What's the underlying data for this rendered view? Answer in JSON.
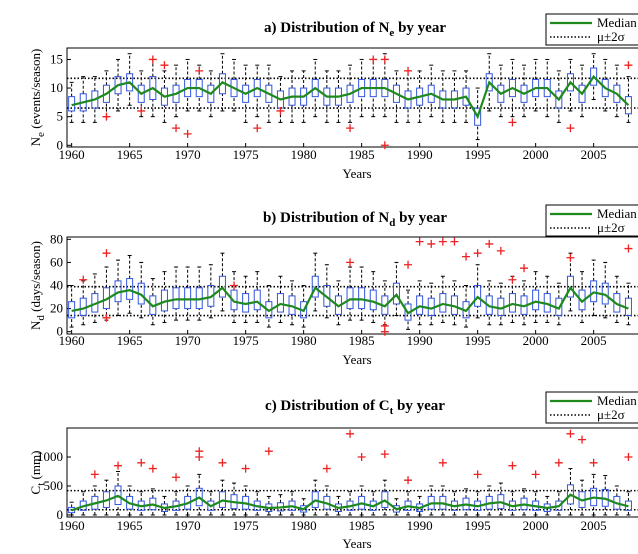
{
  "chart_data": [
    {
      "type": "box",
      "title": {
        "main": "a) Distribution of N",
        "sub": "e",
        "tail": " by year"
      },
      "ylabel": {
        "main": "N",
        "sub": "e",
        "tail": " (events/season)"
      },
      "xlabel": "Years",
      "legend": {
        "median": "Median",
        "band": "μ±2σ"
      },
      "median_color": "#1e8a1e",
      "box_color": "#3355dd",
      "outlier_color": "#ee2222",
      "xlim": [
        1959.6,
        2009.3
      ],
      "xticks": [
        1960,
        1965,
        1970,
        1975,
        1980,
        1985,
        1990,
        1995,
        2000,
        2005
      ],
      "ylim": [
        -0.3,
        17
      ],
      "yticks": [
        0,
        5,
        10,
        15
      ],
      "mu_plus": 11.7,
      "mu_minus": 6.5,
      "years": [
        1960,
        1961,
        1962,
        1963,
        1964,
        1965,
        1966,
        1967,
        1968,
        1969,
        1970,
        1971,
        1972,
        1973,
        1974,
        1975,
        1976,
        1977,
        1978,
        1979,
        1980,
        1981,
        1982,
        1983,
        1984,
        1985,
        1986,
        1987,
        1988,
        1989,
        1990,
        1991,
        1992,
        1993,
        1994,
        1995,
        1996,
        1997,
        1998,
        1999,
        2000,
        2001,
        2002,
        2003,
        2004,
        2005,
        2006,
        2007,
        2008
      ],
      "median": [
        7,
        7.5,
        8,
        9,
        10.5,
        11,
        9,
        10,
        8.5,
        9,
        10,
        10,
        9,
        11,
        10,
        9,
        10,
        9,
        8,
        8.5,
        8.5,
        10,
        8.5,
        8.5,
        9,
        10,
        10,
        10,
        9,
        8,
        8.5,
        9,
        8,
        8,
        8.5,
        5,
        11,
        9,
        10,
        9,
        10,
        10,
        8,
        11,
        9,
        12,
        10,
        9,
        7
      ],
      "q1": [
        6,
        6,
        6.5,
        7.5,
        9,
        9.5,
        7.5,
        8,
        7,
        7.5,
        8.5,
        8.5,
        7.5,
        9,
        8.5,
        7.5,
        8.5,
        7.5,
        6.5,
        7,
        7,
        8.5,
        7,
        7,
        7.5,
        8.5,
        8.5,
        8.5,
        7.5,
        6.5,
        7,
        7.5,
        6.5,
        6.5,
        7,
        3.5,
        9.5,
        7.5,
        8.5,
        7.5,
        8.5,
        8.5,
        6.5,
        9.5,
        7.5,
        10.5,
        8.5,
        7.5,
        5.5
      ],
      "q3": [
        8.5,
        9,
        9.5,
        10.5,
        12,
        12.5,
        10.5,
        12,
        10,
        10.5,
        11.5,
        11.5,
        10.5,
        12.5,
        11.5,
        10.5,
        11.5,
        10.5,
        9.5,
        10,
        10,
        11.5,
        10,
        10,
        10.5,
        11.5,
        11.5,
        11.5,
        10.5,
        9.5,
        10,
        10.5,
        9.5,
        9.5,
        10,
        6.5,
        12.5,
        10.5,
        11.5,
        10.5,
        11.5,
        11.5,
        9.5,
        12.5,
        10.5,
        13.5,
        11.5,
        10.5,
        8.5
      ],
      "whisker_low": [
        4,
        4,
        4,
        5,
        6,
        7,
        5,
        5,
        4,
        5,
        6,
        6,
        5,
        6,
        6,
        4,
        5,
        4,
        4,
        4,
        4,
        5,
        4,
        4,
        4,
        5,
        5,
        5,
        4,
        4,
        4,
        5,
        4,
        4,
        4,
        1,
        6,
        5,
        5,
        5,
        6,
        5,
        4,
        6,
        5,
        8,
        6,
        5,
        4
      ],
      "whisker_high": [
        11,
        12,
        12,
        13,
        15,
        16,
        13,
        15,
        13,
        14,
        15,
        14,
        13,
        16,
        15,
        14,
        14,
        14,
        12,
        13,
        13,
        15,
        13,
        13,
        14,
        15,
        15,
        16,
        13,
        13,
        13,
        14,
        13,
        13,
        13,
        10,
        16,
        14,
        15,
        14,
        15,
        15,
        13,
        15,
        14,
        16,
        15,
        14,
        12
      ],
      "outliers": {
        "x": [
          1963,
          1967,
          1968,
          1969,
          1970,
          1971,
          1976,
          1984,
          1986,
          1987,
          1987,
          1989,
          2003,
          2008,
          1966,
          1978,
          1998
        ],
        "values": [
          5,
          15,
          14,
          3,
          2,
          13,
          3,
          3,
          15,
          15,
          0,
          13,
          3,
          14,
          6,
          6,
          4
        ]
      }
    },
    {
      "type": "box",
      "title": {
        "main": "b) Distribution of N",
        "sub": "d",
        "tail": " by year"
      },
      "ylabel": {
        "main": "N",
        "sub": "d",
        "tail": " (days/season)"
      },
      "xlabel": "Years",
      "legend": {
        "median": "Median",
        "band": "μ±2σ"
      },
      "median_color": "#1e8a1e",
      "box_color": "#3355dd",
      "outlier_color": "#ee2222",
      "xlim": [
        1959.6,
        2009.3
      ],
      "xticks": [
        1960,
        1965,
        1970,
        1975,
        1980,
        1985,
        1990,
        1995,
        2000,
        2005
      ],
      "ylim": [
        -2,
        82
      ],
      "yticks": [
        0,
        20,
        40,
        60,
        80
      ],
      "mu_plus": 39,
      "mu_minus": 14,
      "years": [
        1960,
        1961,
        1962,
        1963,
        1964,
        1965,
        1966,
        1967,
        1968,
        1969,
        1970,
        1971,
        1972,
        1973,
        1974,
        1975,
        1976,
        1977,
        1978,
        1979,
        1980,
        1981,
        1982,
        1983,
        1984,
        1985,
        1986,
        1987,
        1988,
        1989,
        1990,
        1991,
        1992,
        1993,
        1994,
        1995,
        1996,
        1997,
        1998,
        1999,
        2000,
        2001,
        2002,
        2003,
        2004,
        2005,
        2006,
        2007,
        2008
      ],
      "median": [
        18,
        20,
        24,
        28,
        34,
        36,
        32,
        22,
        26,
        28,
        28,
        28,
        30,
        38,
        26,
        24,
        26,
        18,
        24,
        22,
        18,
        38,
        30,
        22,
        28,
        28,
        26,
        22,
        32,
        16,
        22,
        20,
        24,
        22,
        18,
        30,
        22,
        20,
        24,
        22,
        26,
        24,
        20,
        38,
        26,
        34,
        32,
        24,
        20
      ],
      "q1": [
        12,
        14,
        17,
        20,
        26,
        28,
        24,
        15,
        18,
        20,
        20,
        20,
        22,
        30,
        19,
        17,
        19,
        12,
        17,
        15,
        12,
        30,
        22,
        15,
        20,
        20,
        19,
        15,
        24,
        10,
        15,
        14,
        17,
        15,
        12,
        22,
        15,
        14,
        17,
        15,
        19,
        17,
        14,
        30,
        19,
        26,
        24,
        17,
        14
      ],
      "q3": [
        26,
        29,
        33,
        38,
        44,
        46,
        42,
        31,
        36,
        38,
        38,
        38,
        40,
        48,
        36,
        33,
        36,
        26,
        33,
        31,
        26,
        48,
        40,
        31,
        38,
        38,
        36,
        31,
        42,
        24,
        31,
        29,
        33,
        31,
        26,
        40,
        31,
        29,
        33,
        31,
        36,
        33,
        29,
        48,
        36,
        44,
        42,
        33,
        29
      ],
      "whisker_low": [
        4,
        6,
        8,
        10,
        14,
        16,
        12,
        6,
        8,
        10,
        10,
        10,
        12,
        18,
        8,
        8,
        8,
        4,
        8,
        6,
        4,
        18,
        12,
        6,
        10,
        10,
        8,
        6,
        14,
        2,
        6,
        6,
        8,
        6,
        4,
        12,
        6,
        6,
        8,
        6,
        8,
        8,
        6,
        18,
        8,
        14,
        12,
        8,
        6
      ],
      "whisker_high": [
        40,
        44,
        50,
        56,
        62,
        66,
        60,
        46,
        52,
        56,
        56,
        56,
        58,
        68,
        52,
        48,
        52,
        40,
        48,
        44,
        40,
        68,
        58,
        44,
        56,
        56,
        52,
        44,
        60,
        36,
        44,
        42,
        48,
        44,
        40,
        58,
        44,
        42,
        48,
        44,
        52,
        48,
        42,
        68,
        52,
        62,
        60,
        48,
        42
      ],
      "outliers": {
        "x": [
          1963,
          1963,
          1974,
          1984,
          1987,
          1987,
          1989,
          1990,
          1991,
          1992,
          1993,
          1994,
          1995,
          1996,
          1997,
          1998,
          1999,
          2003,
          2008,
          1961
        ],
        "values": [
          68,
          12,
          40,
          60,
          5,
          0,
          58,
          78,
          76,
          78,
          78,
          65,
          68,
          76,
          70,
          45,
          55,
          64,
          72,
          45
        ]
      }
    },
    {
      "type": "box",
      "title": {
        "main": "c) Distribution of C",
        "sub": "t",
        "tail": " by year"
      },
      "ylabel": {
        "main": "C",
        "sub": "t",
        "tail": " (mm)"
      },
      "xlabel": "Years",
      "legend": {
        "median": "Median",
        "band": "μ±2σ"
      },
      "median_color": "#1e8a1e",
      "box_color": "#3355dd",
      "outlier_color": "#ee2222",
      "xlim": [
        1959.6,
        2009.3
      ],
      "xticks": [
        1960,
        1965,
        1970,
        1975,
        1980,
        1985,
        1990,
        1995,
        2000,
        2005
      ],
      "ylim": [
        -35,
        1500
      ],
      "yticks": [
        0,
        500,
        1000
      ],
      "mu_plus": 420,
      "mu_minus": 90,
      "years": [
        1960,
        1961,
        1962,
        1963,
        1964,
        1965,
        1966,
        1967,
        1968,
        1969,
        1970,
        1971,
        1972,
        1973,
        1974,
        1975,
        1976,
        1977,
        1978,
        1979,
        1980,
        1981,
        1982,
        1983,
        1984,
        1985,
        1986,
        1987,
        1988,
        1989,
        1990,
        1991,
        1992,
        1993,
        1994,
        1995,
        1996,
        1997,
        1998,
        1999,
        2000,
        2001,
        2002,
        2003,
        2004,
        2005,
        2006,
        2007,
        2008
      ],
      "median": [
        80,
        150,
        200,
        250,
        330,
        200,
        150,
        180,
        120,
        150,
        200,
        300,
        150,
        250,
        220,
        200,
        150,
        120,
        130,
        150,
        100,
        250,
        200,
        120,
        150,
        200,
        150,
        250,
        100,
        150,
        120,
        200,
        200,
        150,
        180,
        150,
        200,
        220,
        150,
        180,
        150,
        120,
        150,
        350,
        250,
        300,
        280,
        200,
        150
      ],
      "q1": [
        40,
        80,
        100,
        130,
        180,
        100,
        80,
        90,
        60,
        80,
        100,
        160,
        80,
        130,
        110,
        100,
        80,
        60,
        70,
        80,
        50,
        130,
        100,
        60,
        80,
        100,
        80,
        130,
        50,
        80,
        60,
        100,
        100,
        80,
        90,
        80,
        100,
        110,
        80,
        90,
        80,
        60,
        80,
        190,
        130,
        160,
        150,
        100,
        80
      ],
      "q3": [
        130,
        240,
        320,
        400,
        500,
        320,
        240,
        290,
        190,
        240,
        320,
        460,
        240,
        400,
        350,
        320,
        240,
        190,
        210,
        240,
        160,
        400,
        320,
        190,
        240,
        320,
        240,
        400,
        160,
        240,
        190,
        320,
        320,
        240,
        290,
        240,
        320,
        350,
        240,
        290,
        240,
        190,
        240,
        520,
        400,
        460,
        440,
        320,
        240
      ],
      "whisker_low": [
        0,
        0,
        0,
        0,
        0,
        0,
        0,
        0,
        0,
        0,
        0,
        0,
        0,
        0,
        0,
        0,
        0,
        0,
        0,
        0,
        0,
        0,
        0,
        0,
        0,
        0,
        0,
        0,
        0,
        0,
        0,
        0,
        0,
        0,
        0,
        0,
        0,
        0,
        0,
        0,
        0,
        0,
        0,
        0,
        0,
        0,
        0,
        0,
        0
      ],
      "whisker_high": [
        220,
        400,
        500,
        600,
        750,
        500,
        400,
        450,
        320,
        400,
        500,
        700,
        400,
        600,
        550,
        500,
        400,
        320,
        350,
        400,
        280,
        600,
        500,
        320,
        400,
        500,
        400,
        600,
        280,
        400,
        320,
        500,
        500,
        400,
        450,
        400,
        500,
        550,
        400,
        450,
        400,
        320,
        400,
        800,
        600,
        700,
        680,
        500,
        400
      ],
      "outliers": {
        "x": [
          1962,
          1964,
          1966,
          1967,
          1969,
          1971,
          1971,
          1973,
          1975,
          1977,
          1982,
          1984,
          1985,
          1987,
          1989,
          1992,
          1995,
          1998,
          2000,
          2002,
          2003,
          2004,
          2005,
          2008
        ],
        "values": [
          700,
          850,
          900,
          800,
          650,
          1100,
          1000,
          900,
          800,
          1100,
          800,
          1400,
          1000,
          1050,
          600,
          900,
          700,
          850,
          700,
          900,
          1400,
          1300,
          900,
          1000
        ]
      }
    }
  ]
}
